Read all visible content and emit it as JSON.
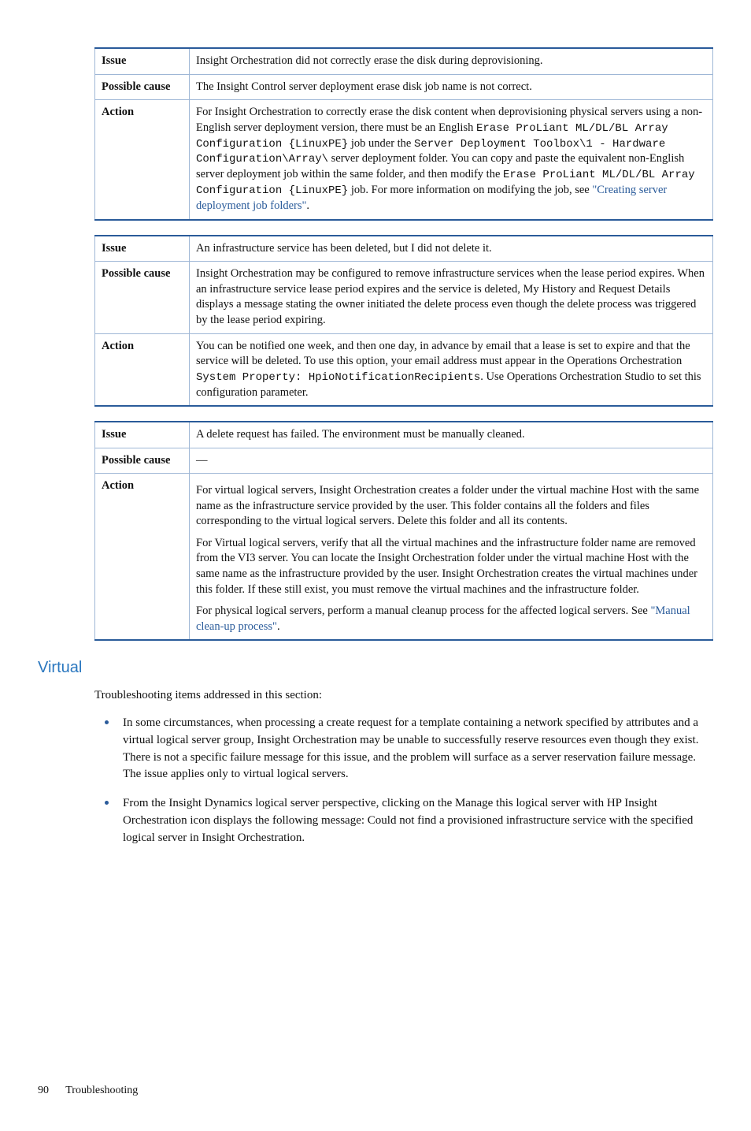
{
  "tables": [
    {
      "rows": [
        {
          "label": "Issue",
          "html": "Insight Orchestration did not correctly erase the disk during deprovisioning."
        },
        {
          "label": "Possible cause",
          "html": "The Insight Control server deployment erase disk job name is not correct."
        },
        {
          "label": "Action",
          "html": "For Insight Orchestration to correctly erase the disk content when deprovisioning physical servers using a non-English server deployment version, there must be an English <span class=\"mono\">Erase ProLiant ML/DL/BL Array Configuration {LinuxPE}</span> job under the <span class=\"mono\">Server Deployment Toolbox\\1 - Hardware Configuration\\Array\\</span> server deployment folder. You can copy and paste the equivalent non-English server deployment job within the same folder, and then modify the <span class=\"mono\">Erase ProLiant ML/DL/BL Array Configuration {LinuxPE}</span> job. For more information on modifying the job, see <a class=\"link\" href=\"#\">\"Creating server deployment job folders\"</a>."
        }
      ]
    },
    {
      "rows": [
        {
          "label": "Issue",
          "html": "An infrastructure service has been deleted, but I did not delete it."
        },
        {
          "label": "Possible cause",
          "html": "Insight Orchestration may be configured to remove infrastructure services when the lease period expires. When an infrastructure service lease period expires and the service is deleted, My History and Request Details displays a message stating the owner initiated the delete process even though the delete process was triggered by the lease period expiring."
        },
        {
          "label": "Action",
          "html": "You can be notified one week, and then one day, in advance by email that a lease is set to expire and that the service will be deleted. To use this option, your email address must appear in the Operations Orchestration <span class=\"mono\">System Property: HpioNotificationRecipients</span>. Use Operations Orchestration Studio to set this configuration parameter."
        }
      ]
    },
    {
      "rows": [
        {
          "label": "Issue",
          "html": "A delete request has failed. The environment must be manually cleaned."
        },
        {
          "label": "Possible cause",
          "html": "—"
        },
        {
          "label": "Action",
          "html": "<div class=\"action-block\"><p>For virtual logical servers, Insight Orchestration creates a folder under the virtual machine Host with the same name as the infrastructure service provided by the user. This folder contains all the folders and files corresponding to the virtual logical servers. Delete this folder and all its contents.</p><p>For Virtual logical servers, verify that all the virtual machines and the infrastructure folder name are removed from the VI3 server. You can locate the Insight Orchestration folder under the virtual machine Host with the same name as the infrastructure provided by the user. Insight Orchestration creates the virtual machines under this folder. If these still exist, you must remove the virtual machines and the infrastructure folder.</p><p>For physical logical servers, perform a manual cleanup process for the affected logical servers. See <a class=\"link\" href=\"#\">\"Manual clean-up process\"</a>.</p></div>"
        }
      ]
    }
  ],
  "section": {
    "heading": "Virtual",
    "intro": "Troubleshooting items addressed in this section:",
    "bullets": [
      "In some circumstances, when processing a create request for a template containing a network specified by attributes and a virtual logical server group, Insight Orchestration may be unable to successfully reserve resources even though they exist. There is not a specific failure message for this issue, and the problem will surface as a server reservation failure message. The issue applies only to virtual logical servers.",
      "From the Insight Dynamics logical server perspective, clicking on the Manage this logical server with HP Insight Orchestration icon displays the following message: Could not find a provisioned infrastructure service with the specified logical server in Insight Orchestration."
    ]
  },
  "footer": {
    "page": "90",
    "title": "Troubleshooting"
  }
}
